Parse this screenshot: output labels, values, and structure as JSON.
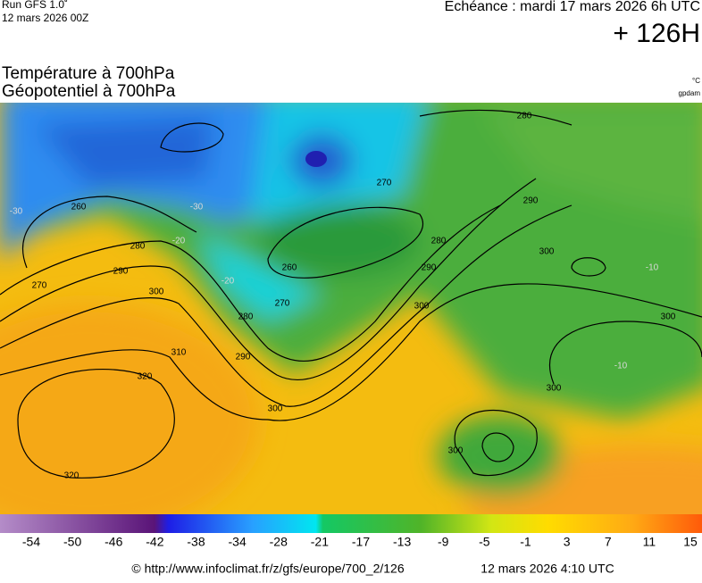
{
  "header": {
    "model": "Run GFS 1.0˚",
    "run": "12 mars 2026 00Z",
    "valid": "Echéance : mardi 17 mars 2026 6h UTC",
    "lead": "+ 126H"
  },
  "title": {
    "line1": "Température à 700hPa",
    "line2": "Géopotentiel à 700hPa"
  },
  "units": {
    "temperature": "°C",
    "geopotential": "gpdam"
  },
  "map": {
    "contour_labels": [
      "260",
      "270",
      "280",
      "290",
      "300",
      "310",
      "320",
      "320",
      "300",
      "290",
      "280",
      "270",
      "260",
      "270",
      "280",
      "290",
      "300",
      "280",
      "290",
      "300",
      "300",
      "300",
      "300"
    ],
    "temperature_labels": [
      "-30",
      "-20",
      "-30",
      "-20",
      "-10",
      "-10"
    ]
  },
  "colorbar": {
    "labels": [
      -54,
      -50,
      -46,
      -42,
      -38,
      -34,
      -28,
      -21,
      -17,
      -13,
      -9,
      -5,
      -1,
      3,
      7,
      11,
      15
    ]
  },
  "footer": {
    "url": "© http://www.infoclimat.fr/z/gfs/europe/700_2/126",
    "date": "12 mars 2026  4:10 UTC"
  }
}
